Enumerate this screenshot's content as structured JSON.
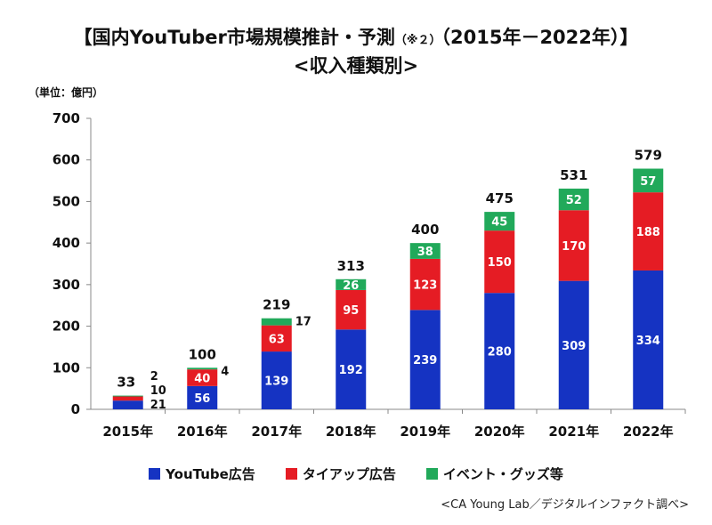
{
  "title_main": "【国内YouTuber市場規模推計・予測",
  "title_note": "（※２）",
  "title_range": "（2015年－2022年）】",
  "subtitle": "<収入種類別>",
  "source": "<CA Young Lab／デジタルインファクト調べ>",
  "colors": {
    "youtube": "#1533c2",
    "tieup": "#e51c24",
    "event": "#21a95a",
    "axis": "#888888",
    "grid": "#dddddd"
  },
  "chart_data": {
    "type": "bar",
    "stacked": true,
    "ylabel": "（単位：億円）",
    "ylim": [
      0,
      700
    ],
    "yticks": [
      0,
      100,
      200,
      300,
      400,
      500,
      600,
      700
    ],
    "categories": [
      "2015年",
      "2016年",
      "2017年",
      "2018年",
      "2019年",
      "2020年",
      "2021年",
      "2022年"
    ],
    "totals": [
      33,
      100,
      219,
      313,
      400,
      475,
      531,
      579
    ],
    "series": [
      {
        "name": "YouTube広告",
        "values": [
          21,
          56,
          139,
          192,
          239,
          280,
          309,
          334
        ]
      },
      {
        "name": "タイアップ広告",
        "values": [
          10,
          40,
          63,
          95,
          123,
          150,
          170,
          188
        ]
      },
      {
        "name": "イベント・グッズ等",
        "values": [
          2,
          4,
          17,
          26,
          38,
          45,
          52,
          57
        ]
      }
    ],
    "legend_position": "bottom"
  }
}
